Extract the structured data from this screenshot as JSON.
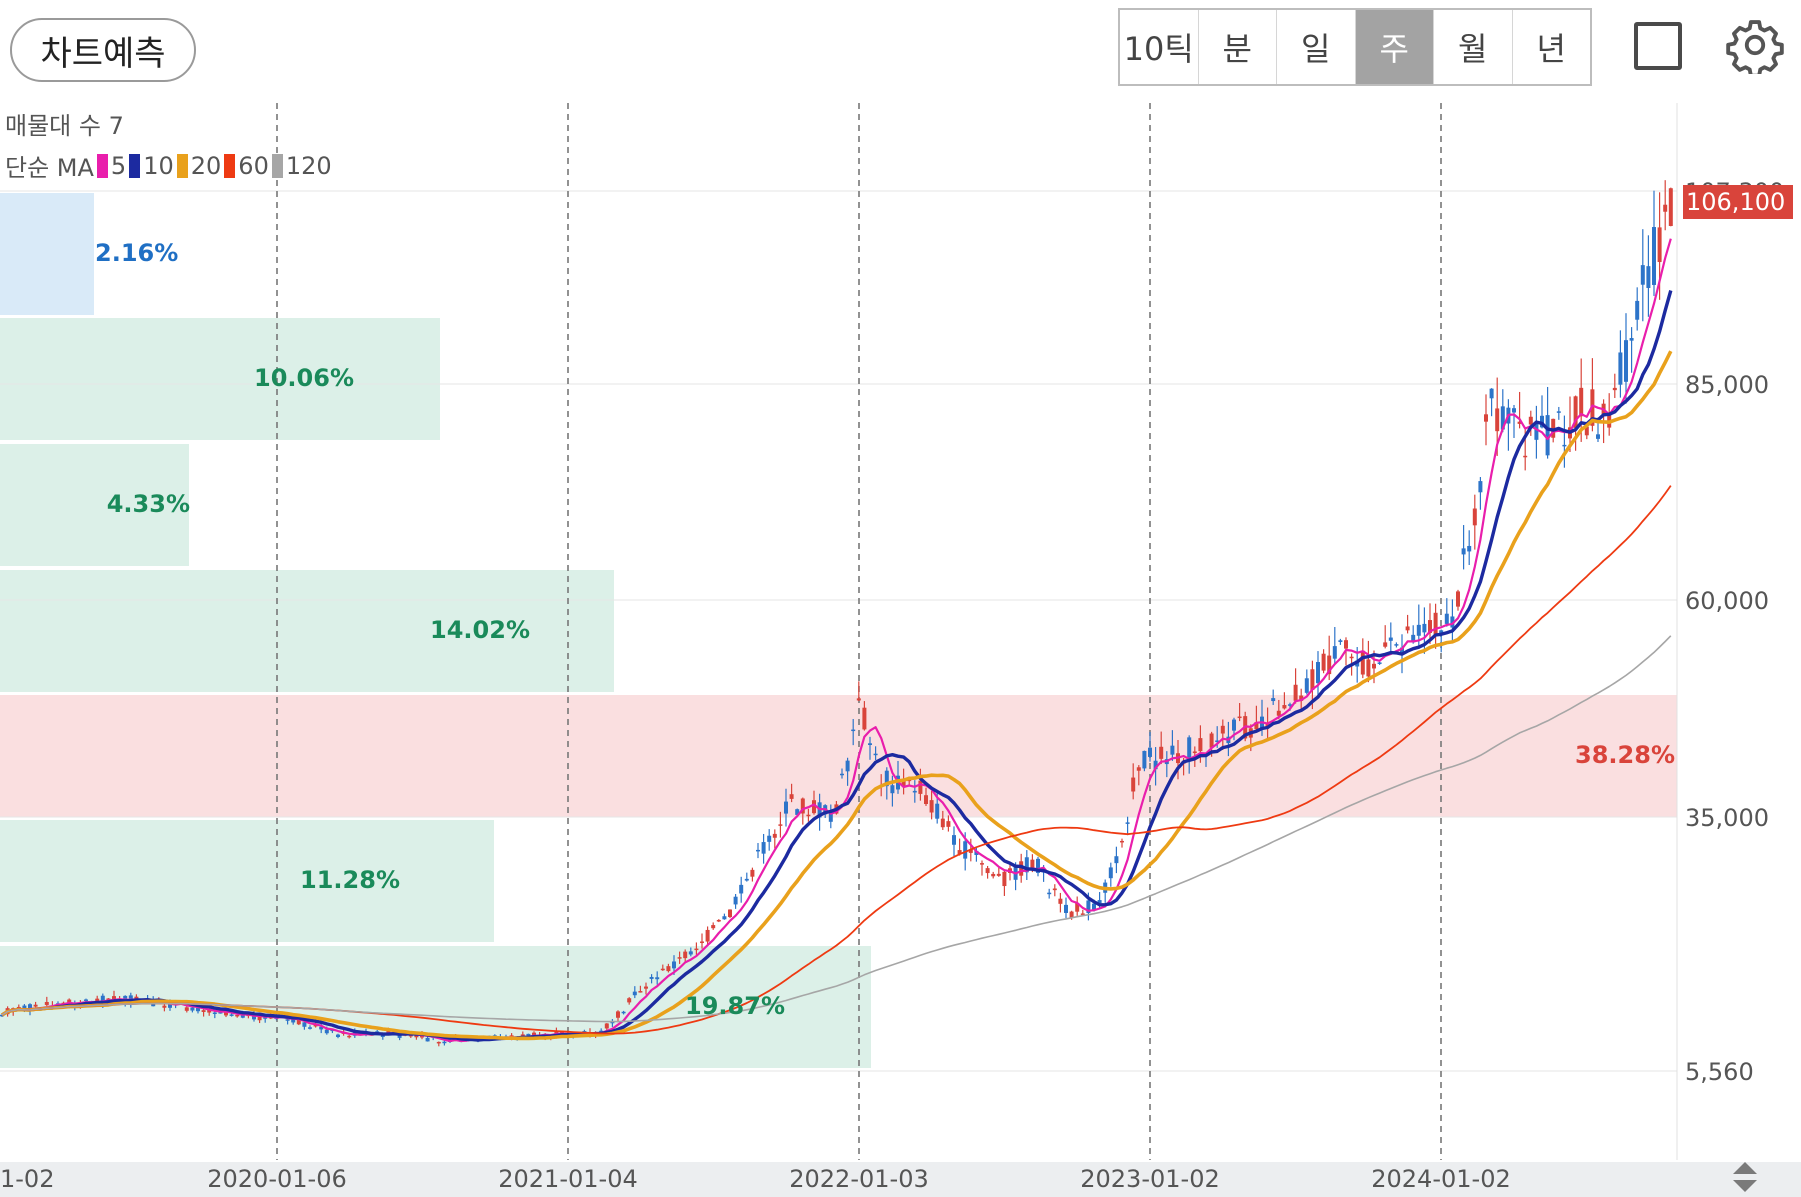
{
  "toolbar": {
    "predict_label": "차트예측",
    "periods": [
      "10틱",
      "분",
      "일",
      "주",
      "월",
      "년"
    ],
    "active_period": "주"
  },
  "legend": {
    "volume_profile_label": "매물대 수 7",
    "ma_label": "단순 MA",
    "ma_items": [
      {
        "period": "5",
        "color": "#e91eac"
      },
      {
        "period": "10",
        "color": "#1c2aa0"
      },
      {
        "period": "20",
        "color": "#e9a11c"
      },
      {
        "period": "60",
        "color": "#ee3a12"
      },
      {
        "period": "120",
        "color": "#a6a6a6"
      }
    ]
  },
  "price_axis": {
    "ticks": [
      "107,300",
      "85,000",
      "60,000",
      "35,000",
      "5,560"
    ],
    "current_price": "106,100",
    "current_price_color": "#d9443b"
  },
  "time_axis": {
    "ticks": [
      "1-02",
      "2020-01-06",
      "2021-01-04",
      "2022-01-03",
      "2023-01-02",
      "2024-01-02"
    ]
  },
  "colors": {
    "up": "#d9443b",
    "down": "#2d74c9",
    "volume_band": "#dcf0e8",
    "volume_band_max": "#fadfe0",
    "volume_band_top": "#d9eaf8",
    "volume_label": "#1a8a5a",
    "volume_label_max": "#d9443b",
    "volume_label_top": "#1f6fc4"
  },
  "chart_data": {
    "type": "candlestick",
    "timeframe": "weekly",
    "y_axis_ticks": [
      107300,
      85000,
      60000,
      35000,
      5560
    ],
    "x_axis_ticks": [
      "1-02",
      "2020-01-06",
      "2021-01-04",
      "2022-01-03",
      "2023-01-02",
      "2024-01-02"
    ],
    "last_price": 106100,
    "volume_profile": [
      {
        "percent": "2.16%"
      },
      {
        "percent": "10.06%"
      },
      {
        "percent": "4.33%"
      },
      {
        "percent": "14.02%"
      },
      {
        "percent": "38.28%",
        "highlight": true
      },
      {
        "percent": "11.28%"
      },
      {
        "percent": "19.87%"
      }
    ],
    "moving_averages": [
      "5",
      "10",
      "20",
      "60",
      "120"
    ]
  }
}
